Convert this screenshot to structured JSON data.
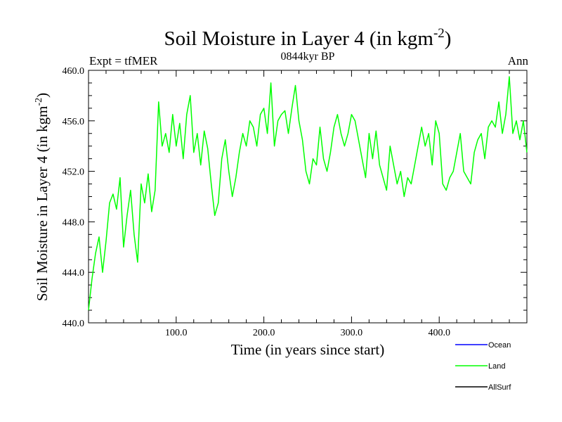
{
  "chart_data": {
    "type": "line",
    "title": "Soil Moisture in Layer 4 (in kgm",
    "title_sup": "-2",
    "title_close": ")",
    "subtitle_left": "Expt = tfMER",
    "subtitle_center": "0844kyr BP",
    "subtitle_right": "Ann",
    "xlabel": "Time (in years since start)",
    "ylabel": "Soil Moisture in Layer 4 (in kgm",
    "ylabel_sup": "-2",
    "ylabel_close": ")",
    "xlim": [
      0,
      500
    ],
    "ylim": [
      440,
      460
    ],
    "x_ticks": [
      100,
      200,
      300,
      400
    ],
    "x_tick_labels": [
      "100.0",
      "200.0",
      "300.0",
      "400.0"
    ],
    "y_ticks": [
      440,
      444,
      448,
      452,
      456,
      460
    ],
    "y_tick_labels": [
      "440.0",
      "444.0",
      "448.0",
      "452.0",
      "456.0",
      "460.0"
    ],
    "legend": [
      {
        "name": "Ocean",
        "color": "#0000ff"
      },
      {
        "name": "Land",
        "color": "#00ff00"
      },
      {
        "name": "AllSurf",
        "color": "#000000"
      }
    ],
    "series": [
      {
        "name": "Land",
        "color": "#00ff00",
        "x": [
          0,
          4,
          8,
          12,
          16,
          20,
          24,
          28,
          32,
          36,
          40,
          44,
          48,
          52,
          56,
          60,
          64,
          68,
          72,
          76,
          80,
          84,
          88,
          92,
          96,
          100,
          104,
          108,
          112,
          116,
          120,
          124,
          128,
          132,
          136,
          140,
          144,
          148,
          152,
          156,
          160,
          164,
          168,
          172,
          176,
          180,
          184,
          188,
          192,
          196,
          200,
          204,
          208,
          212,
          216,
          220,
          224,
          228,
          232,
          236,
          240,
          244,
          248,
          252,
          256,
          260,
          264,
          268,
          272,
          276,
          280,
          284,
          288,
          292,
          296,
          300,
          304,
          308,
          312,
          316,
          320,
          324,
          328,
          332,
          336,
          340,
          344,
          348,
          352,
          356,
          360,
          364,
          368,
          372,
          376,
          380,
          384,
          388,
          392,
          396,
          400,
          404,
          408,
          412,
          416,
          420,
          424,
          428,
          432,
          436,
          440,
          444,
          448,
          452,
          456,
          460,
          464,
          468,
          472,
          476,
          480,
          484,
          488,
          492,
          496,
          500
        ],
        "values": [
          441.0,
          443.5,
          445.5,
          446.8,
          444.0,
          446.5,
          449.5,
          450.2,
          449.0,
          451.5,
          446.0,
          448.5,
          450.5,
          447.0,
          444.8,
          451.0,
          449.5,
          451.8,
          448.8,
          450.5,
          457.5,
          454.0,
          455.0,
          453.5,
          456.5,
          454.0,
          455.8,
          453.0,
          456.5,
          458.0,
          453.5,
          455.0,
          452.5,
          455.2,
          453.8,
          451.0,
          448.5,
          449.5,
          453.0,
          454.5,
          452.0,
          450.0,
          451.5,
          453.5,
          455.0,
          454.0,
          456.0,
          455.5,
          454.0,
          456.5,
          457.0,
          455.0,
          459.0,
          454.0,
          456.0,
          456.5,
          456.8,
          455.0,
          457.0,
          458.8,
          456.0,
          454.5,
          452.0,
          451.0,
          453.0,
          452.5,
          455.5,
          453.0,
          452.0,
          453.5,
          455.5,
          456.5,
          455.0,
          454.0,
          455.0,
          456.5,
          456.0,
          454.5,
          453.0,
          451.5,
          455.0,
          453.0,
          455.2,
          452.5,
          451.5,
          450.5,
          454.0,
          452.5,
          451.0,
          452.0,
          450.0,
          451.5,
          451.0,
          452.5,
          454.0,
          455.5,
          454.0,
          455.0,
          452.5,
          456.0,
          455.0,
          451.0,
          450.5,
          451.5,
          452.0,
          453.5,
          455.0,
          452.0,
          451.5,
          451.0,
          453.5,
          454.5,
          455.0,
          453.0,
          455.5,
          456.0,
          455.5,
          457.5,
          455.0,
          456.5,
          459.5,
          455.0,
          456.0,
          454.5,
          456.0,
          453.5
        ]
      }
    ]
  }
}
